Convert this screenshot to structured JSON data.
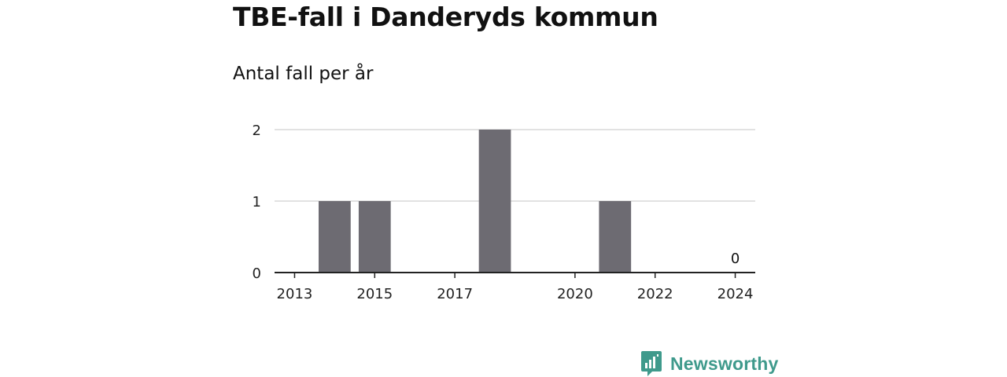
{
  "header": {
    "title": "TBE-fall i Danderyds kommun",
    "subtitle": "Antal fall per år"
  },
  "brand": {
    "name": "Newsworthy",
    "icon": "chart-logo-icon",
    "color": "#3f9a8c"
  },
  "chart_data": {
    "type": "bar",
    "title": "TBE-fall i Danderyds kommun",
    "subtitle": "Antal fall per år",
    "xlabel": "",
    "ylabel": "",
    "x": [
      2013,
      2014,
      2015,
      2016,
      2017,
      2018,
      2019,
      2020,
      2021,
      2022,
      2023,
      2024
    ],
    "values": [
      0,
      1,
      1,
      0,
      0,
      2,
      0,
      0,
      1,
      0,
      0,
      0
    ],
    "x_ticks": [
      2013,
      2015,
      2017,
      2020,
      2022,
      2024
    ],
    "y_ticks": [
      0,
      1,
      2
    ],
    "ylim": [
      0,
      2
    ],
    "xlim": [
      2012.5,
      2024.5
    ],
    "data_labels": [
      {
        "x": 2024,
        "text": "0"
      }
    ],
    "grid": true,
    "bar_color": "#6d6b72",
    "grid_color": "#d9d9d9",
    "axis_color": "#222222"
  }
}
